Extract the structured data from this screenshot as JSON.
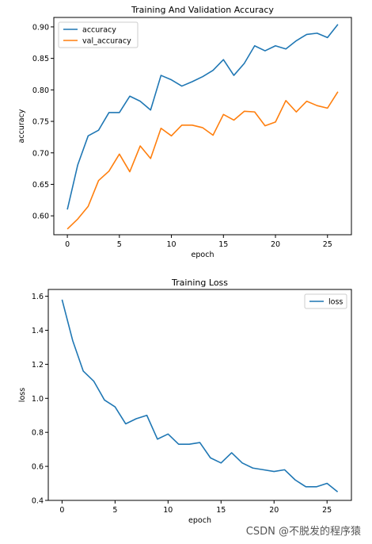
{
  "watermark": "CSDN @不脱发的程序猿",
  "chart_data": [
    {
      "type": "line",
      "title": "Training And Validation Accuracy",
      "xlabel": "epoch",
      "ylabel": "accuracy",
      "xlim": [
        -1.3,
        27.3
      ],
      "ylim": [
        0.57,
        0.915
      ],
      "xticks": [
        0,
        5,
        10,
        15,
        20,
        25
      ],
      "yticks": [
        0.6,
        0.65,
        0.7,
        0.75,
        0.8,
        0.85,
        0.9
      ],
      "ytick_labels": [
        "0.60",
        "0.65",
        "0.70",
        "0.75",
        "0.80",
        "0.85",
        "0.90"
      ],
      "legend_position": "top-left",
      "x": [
        0,
        1,
        2,
        3,
        4,
        5,
        6,
        7,
        8,
        9,
        10,
        11,
        12,
        13,
        14,
        15,
        16,
        17,
        18,
        19,
        20,
        21,
        22,
        23,
        24,
        25,
        26
      ],
      "series": [
        {
          "name": "accuracy",
          "color": "#1f77b4",
          "values": [
            0.61,
            0.681,
            0.727,
            0.736,
            0.764,
            0.764,
            0.79,
            0.782,
            0.768,
            0.823,
            0.816,
            0.806,
            0.813,
            0.821,
            0.831,
            0.848,
            0.823,
            0.842,
            0.87,
            0.862,
            0.87,
            0.865,
            0.878,
            0.888,
            0.89,
            0.883,
            0.904
          ]
        },
        {
          "name": "val_accuracy",
          "color": "#ff7f0e",
          "values": [
            0.579,
            0.595,
            0.615,
            0.656,
            0.671,
            0.698,
            0.67,
            0.711,
            0.691,
            0.739,
            0.727,
            0.744,
            0.744,
            0.74,
            0.728,
            0.761,
            0.752,
            0.766,
            0.765,
            0.743,
            0.749,
            0.783,
            0.765,
            0.782,
            0.775,
            0.771,
            0.797
          ]
        }
      ]
    },
    {
      "type": "line",
      "title": "Training Loss",
      "xlabel": "epoch",
      "ylabel": "loss",
      "xlim": [
        -1.3,
        27.3
      ],
      "ylim": [
        0.4,
        1.64
      ],
      "xticks": [
        0,
        5,
        10,
        15,
        20,
        25
      ],
      "yticks": [
        0.4,
        0.6,
        0.8,
        1.0,
        1.2,
        1.4,
        1.6
      ],
      "ytick_labels": [
        "0.4",
        "0.6",
        "0.8",
        "1.0",
        "1.2",
        "1.4",
        "1.6"
      ],
      "legend_position": "top-right",
      "x": [
        0,
        1,
        2,
        3,
        4,
        5,
        6,
        7,
        8,
        9,
        10,
        11,
        12,
        13,
        14,
        15,
        16,
        17,
        18,
        19,
        20,
        21,
        22,
        23,
        24,
        25,
        26
      ],
      "series": [
        {
          "name": "loss",
          "color": "#1f77b4",
          "values": [
            1.58,
            1.34,
            1.16,
            1.1,
            0.99,
            0.95,
            0.85,
            0.88,
            0.9,
            0.76,
            0.79,
            0.73,
            0.73,
            0.74,
            0.65,
            0.62,
            0.68,
            0.62,
            0.59,
            0.58,
            0.57,
            0.58,
            0.52,
            0.48,
            0.48,
            0.5,
            0.45
          ]
        }
      ]
    }
  ]
}
